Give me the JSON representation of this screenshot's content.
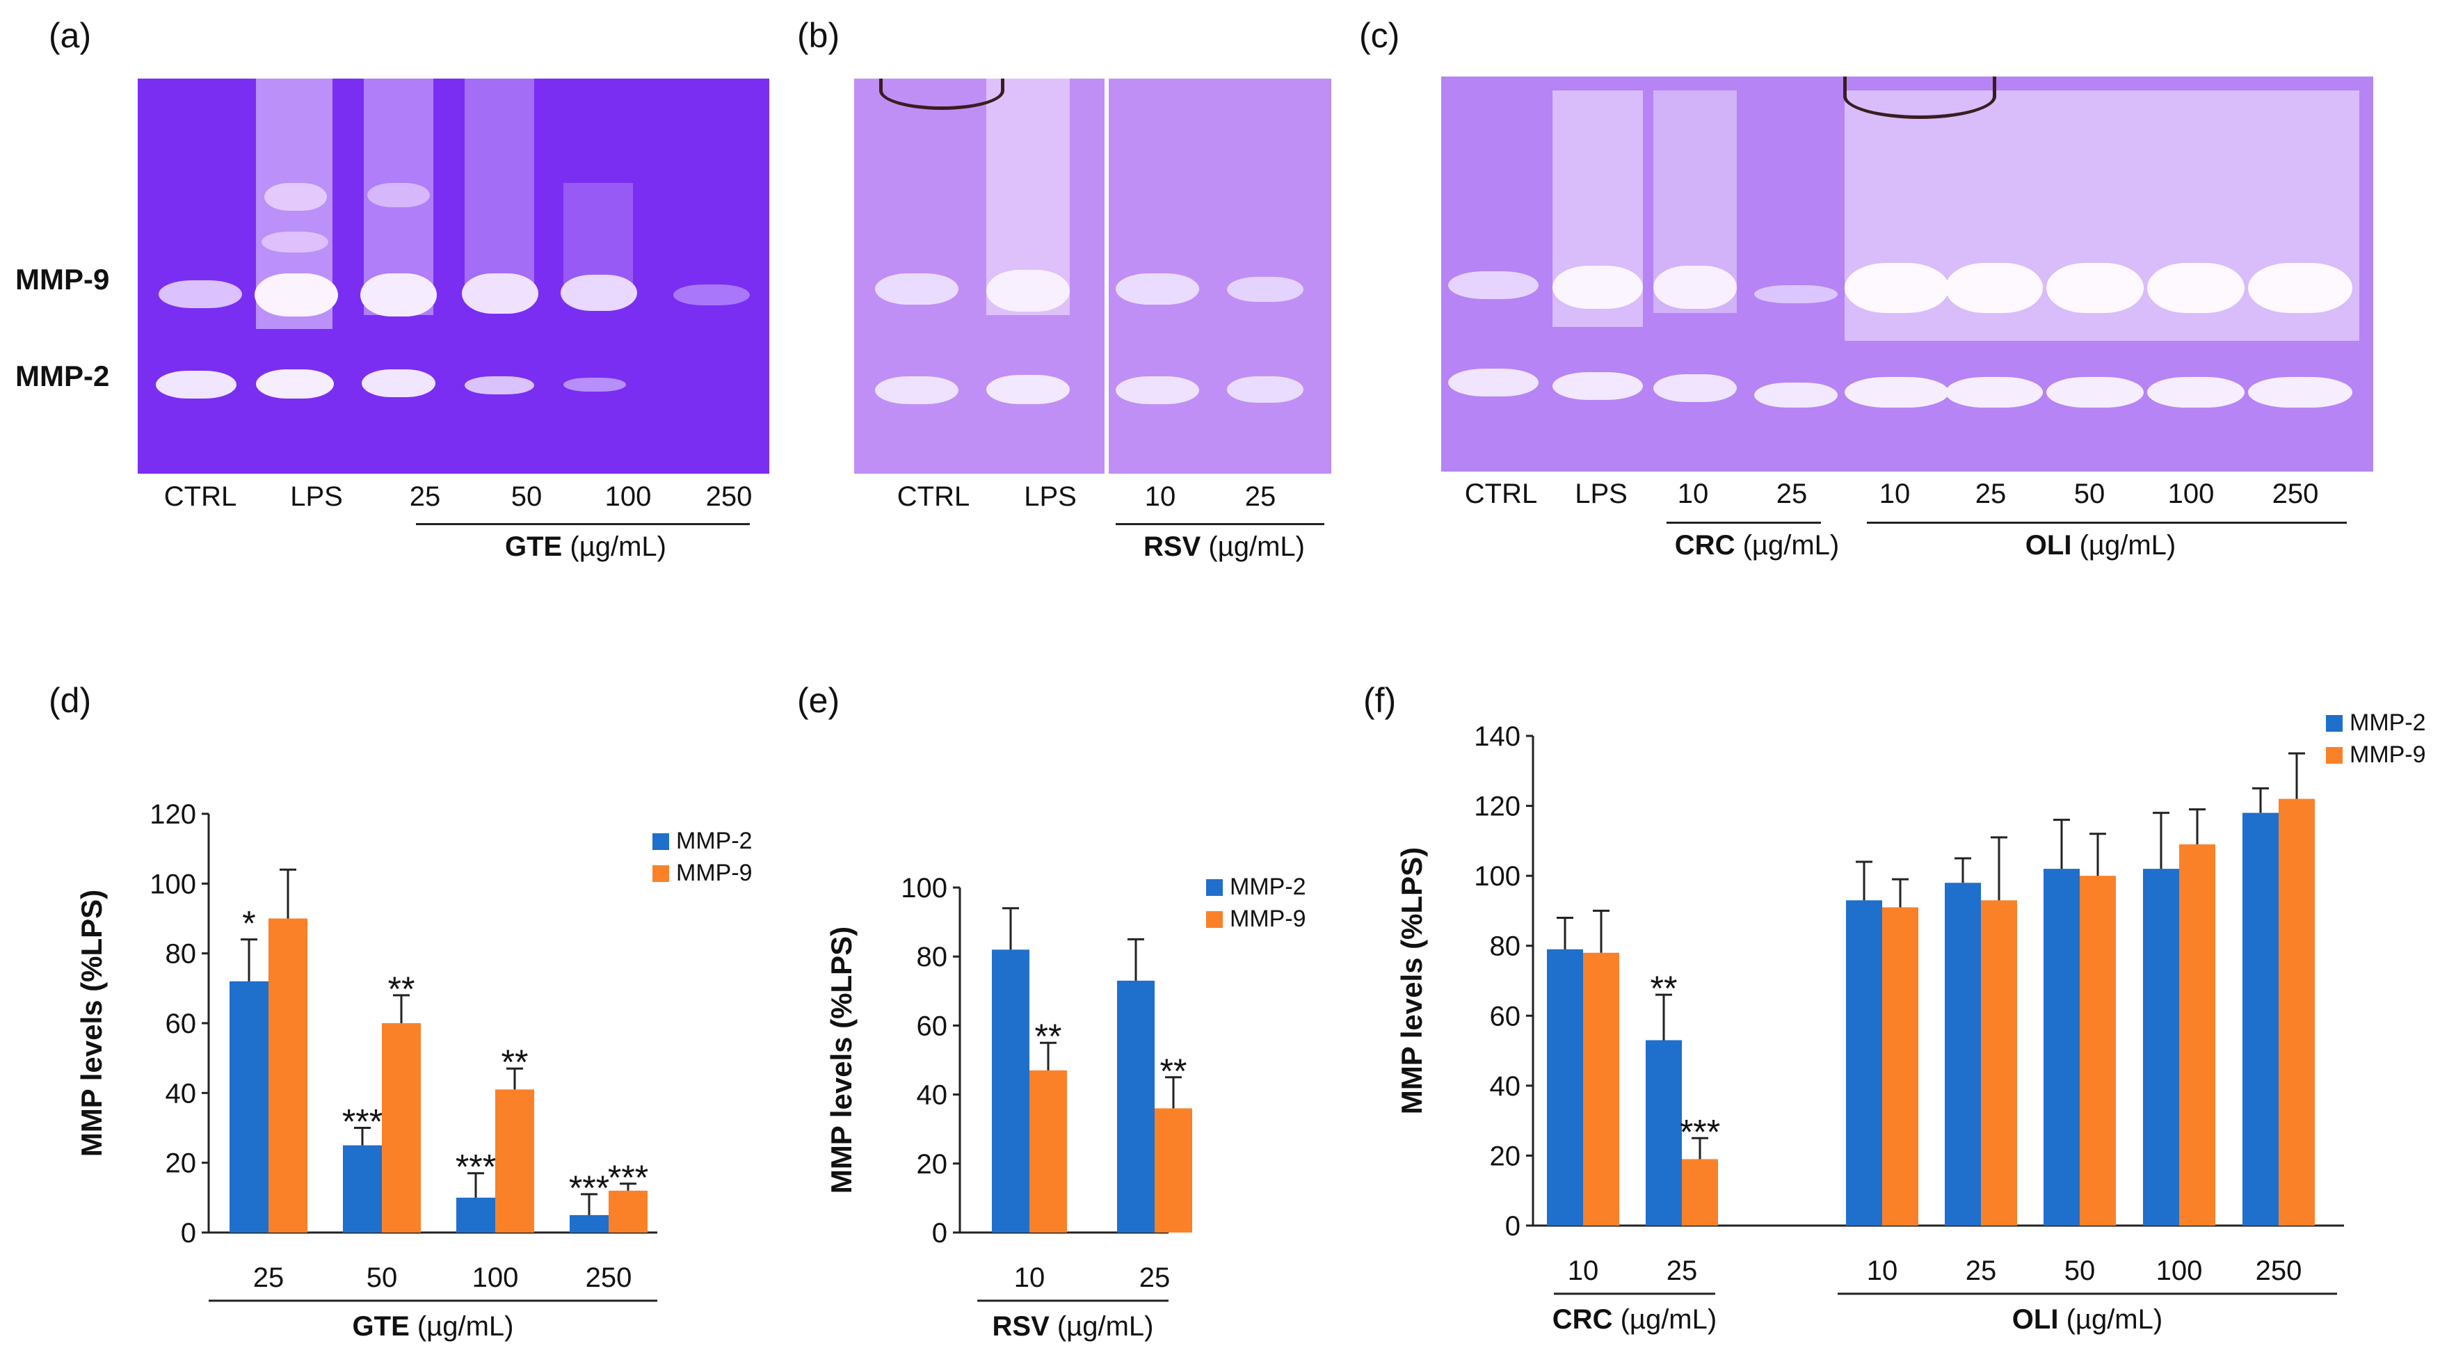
{
  "panels": {
    "a": "(a)",
    "b": "(b)",
    "c": "(c)",
    "d": "(d)",
    "e": "(e)",
    "f": "(f)"
  },
  "gel_labels": {
    "mmp9": "MMP-9",
    "mmp2": "MMP-2"
  },
  "gel_a": {
    "lanes": [
      "CTRL",
      "LPS",
      "25",
      "50",
      "100",
      "250"
    ],
    "group": "GTE",
    "unit": "(µg/mL)"
  },
  "gel_b": {
    "lanes": [
      "CTRL",
      "LPS",
      "10",
      "25"
    ],
    "group": "RSV",
    "unit": "(µg/mL)"
  },
  "gel_c": {
    "lanes": [
      "CTRL",
      "LPS",
      "10",
      "25",
      "10",
      "25",
      "50",
      "100",
      "250"
    ],
    "group1": "CRC",
    "group2": "OLI",
    "unit": "(µg/mL)"
  },
  "colors": {
    "mmp2": "#1f6fcc",
    "mmp9": "#fa8128",
    "gel": "#7b2ff0"
  },
  "chart_data": [
    {
      "id": "d",
      "type": "bar",
      "categories": [
        "25",
        "50",
        "100",
        "250"
      ],
      "series": [
        {
          "name": "MMP-2",
          "values": [
            72,
            25,
            10,
            5
          ],
          "errors": [
            12,
            5,
            7,
            6
          ],
          "sig": [
            "*",
            "***",
            "***",
            "***"
          ]
        },
        {
          "name": "MMP-9",
          "values": [
            90,
            60,
            41,
            12
          ],
          "errors": [
            14,
            8,
            6,
            2
          ],
          "sig": [
            "",
            "**",
            "**",
            "***"
          ]
        }
      ],
      "ylabel": "MMP levels  (%LPS)",
      "ylim": [
        0,
        120
      ],
      "yticks": [
        0,
        20,
        40,
        60,
        80,
        100,
        120
      ],
      "group_label": "GTE",
      "unit": "(µg/mL)"
    },
    {
      "id": "e",
      "type": "bar",
      "categories": [
        "10",
        "25"
      ],
      "series": [
        {
          "name": "MMP-2",
          "values": [
            82,
            73
          ],
          "errors": [
            12,
            12
          ],
          "sig": [
            "",
            ""
          ]
        },
        {
          "name": "MMP-9",
          "values": [
            47,
            36
          ],
          "errors": [
            8,
            9
          ],
          "sig": [
            "**",
            "**"
          ]
        }
      ],
      "ylabel": "MMP levels (%LPS)",
      "ylim": [
        0,
        100
      ],
      "yticks": [
        0,
        20,
        40,
        60,
        80,
        100
      ],
      "group_label": "RSV",
      "unit": "(µg/mL)"
    },
    {
      "id": "f",
      "type": "bar",
      "categories": [
        "10",
        "25",
        "10",
        "25",
        "50",
        "100",
        "250"
      ],
      "series": [
        {
          "name": "MMP-2",
          "values": [
            79,
            53,
            93,
            98,
            102,
            102,
            118
          ],
          "errors": [
            9,
            13,
            11,
            7,
            14,
            16,
            7
          ],
          "sig": [
            "",
            "**",
            "",
            "",
            "",
            "",
            ""
          ]
        },
        {
          "name": "MMP-9",
          "values": [
            78,
            19,
            91,
            93,
            100,
            109,
            122
          ],
          "errors": [
            12,
            6,
            8,
            18,
            12,
            10,
            13
          ],
          "sig": [
            "",
            "***",
            "",
            "",
            "",
            "",
            ""
          ]
        }
      ],
      "ylabel": "MMP levels (%LPS)",
      "ylim": [
        0,
        140
      ],
      "yticks": [
        0,
        20,
        40,
        60,
        80,
        100,
        120,
        140
      ],
      "group_labels": [
        "CRC",
        "OLI"
      ],
      "unit": "(µg/mL)"
    }
  ]
}
